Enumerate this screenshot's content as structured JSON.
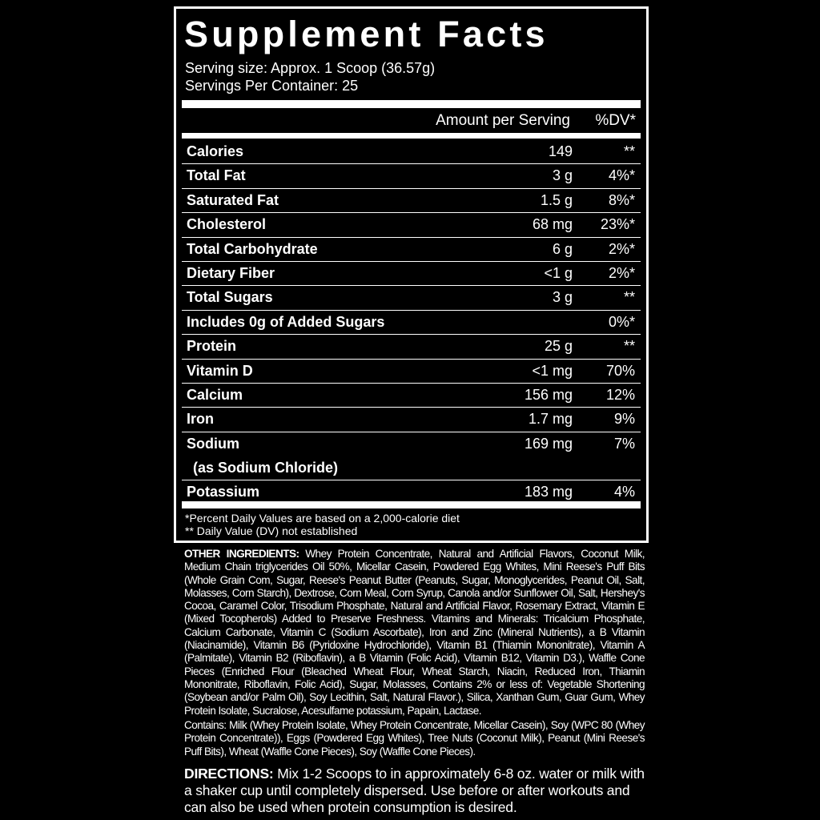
{
  "title": "Supplement Facts",
  "serving_size": "Serving size: Approx. 1 Scoop (36.57g)",
  "servings_per_container": "Servings Per Container: 25",
  "header": {
    "amount": "Amount per Serving",
    "dv": "%DV*"
  },
  "rows": [
    {
      "name": "Calories",
      "amount": "149",
      "dv": "**"
    },
    {
      "name": "Total Fat",
      "amount": "3 g",
      "dv": "4%*"
    },
    {
      "name": "Saturated Fat",
      "amount": "1.5 g",
      "dv": "8%*"
    },
    {
      "name": "Cholesterol",
      "amount": "68 mg",
      "dv": "23%*"
    },
    {
      "name": "Total Carbohydrate",
      "amount": "6 g",
      "dv": "2%*"
    },
    {
      "name": "Dietary Fiber",
      "amount": "<1 g",
      "dv": "2%*"
    },
    {
      "name": "Total Sugars",
      "amount": "3 g",
      "dv": "**"
    },
    {
      "name": "Includes 0g of Added Sugars",
      "amount": "",
      "dv": "0%*"
    },
    {
      "name": "Protein",
      "amount": "25 g",
      "dv": "**"
    },
    {
      "name": "Vitamin D",
      "amount": "<1 mg",
      "dv": "70%"
    },
    {
      "name": "Calcium",
      "amount": "156 mg",
      "dv": "12%"
    },
    {
      "name": "Iron",
      "amount": "1.7 mg",
      "dv": "9%"
    },
    {
      "name": "Sodium",
      "sub": "(as Sodium Chloride)",
      "amount": "169 mg",
      "dv": "7%"
    },
    {
      "name": "Potassium",
      "amount": "183 mg",
      "dv": "4%"
    }
  ],
  "footnotes": [
    "*Percent Daily Values are based on a 2,000-calorie diet",
    "** Daily Value (DV) not established"
  ],
  "other_ingredients_label": "OTHER INGREDIENTS:",
  "other_ingredients": "Whey Protein Concentrate, Natural and Artificial Flavors, Coconut Milk, Medium Chain triglycerides Oil 50%, Micellar Casein, Powdered Egg Whites, Mini Reese's Puff Bits (Whole Grain Com, Sugar, Reese's Peanut Butter (Peanuts, Sugar, Monoglycerides, Peanut Oil, Salt, Molasses, Corn Starch), Dextrose, Corn Meal, Corn Syrup, Canola and/or Sunflower Oil, Salt, Hershey's Cocoa, Caramel Color, Trisodium Phosphate, Natural and Artificial Flavor, Rosemary Extract, Vitamin E (Mixed Tocopherols) Added to Preserve Freshness. Vitamins and Minerals: Tricalcium Phosphate, Calcium Carbonate, Vitamin C (Sodium Ascorbate), Iron and Zinc (Mineral Nutrients), a B Vitamin (Niacinamide), Vitamin B6 (Pyridoxine Hydrochloride), Vitamin B1 (Thiamin Mononitrate), Vitamin A (Palmitate), Vitamin B2 (Riboflavin), a B Vitamin (Folic Acid), Vitamin B12, Vitamin D3.), Waffle Cone Pieces (Enriched Flour (Bleached Wheat Flour, Wheat Starch, Niacin, Reduced Iron, Thiamin Mononitrate, Riboflavin, Folic Acid), Sugar, Molasses, Contains 2% or less of: Vegetable Shortening (Soybean and/or Palm Oil), Soy Lecithin, Salt, Natural Flavor.), Silica, Xanthan Gum, Guar Gum, Whey Protein Isolate, Sucralose, Acesulfame potassium, Papain, Lactase.",
  "contains": "Contains: Milk (Whey Protein Isolate, Whey Protein Concentrate, Micellar Casein), Soy (WPC 80 (Whey Protein Concentrate)), Eggs (Powdered Egg Whites), Tree Nuts (Coconut Milk), Peanut (Mini Reese's Puff Bits), Wheat (Waffle Cone Pieces), Soy (Waffle Cone Pieces).",
  "directions_label": "DIRECTIONS:",
  "directions": "Mix 1-2 Scoops to in approximately 6-8 oz. water or milk with a shaker cup until completely dispersed. Use before or after workouts and can also be used when protein consumption is desired."
}
